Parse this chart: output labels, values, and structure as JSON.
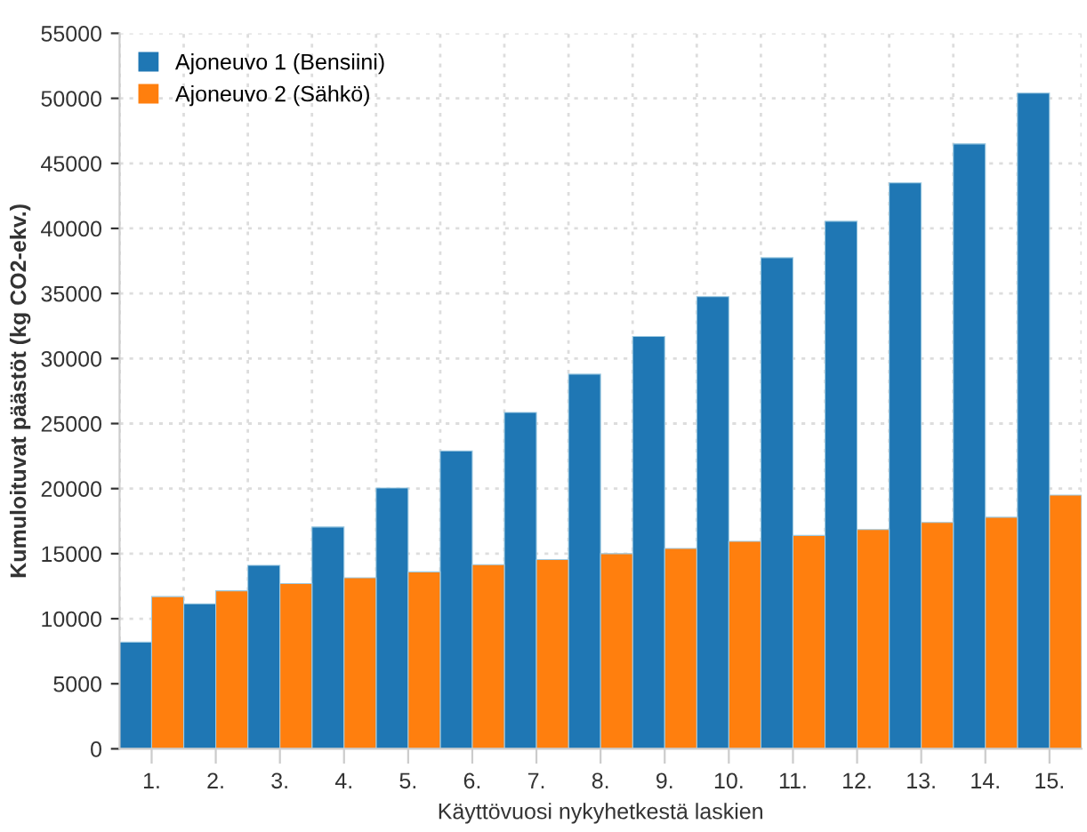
{
  "chart_data": {
    "type": "bar",
    "xlabel": "Käyttövuosi nykyhetkestä laskien",
    "ylabel": "Kumuloituvat päästöt (kg CO2-ekv.)",
    "categories": [
      "1.",
      "2.",
      "3.",
      "4.",
      "5.",
      "6.",
      "7.",
      "8.",
      "9.",
      "10.",
      "11.",
      "12.",
      "13.",
      "14.",
      "15."
    ],
    "series": [
      {
        "name": "Ajoneuvo 1 (Bensiini)",
        "color": "#1f77b4",
        "values": [
          8200,
          11150,
          14100,
          17050,
          20050,
          22900,
          25850,
          28800,
          31700,
          34750,
          37750,
          40550,
          43500,
          46500,
          50400
        ]
      },
      {
        "name": "Ajoneuvo 2 (Sähkö)",
        "color": "#ff7f0e",
        "values": [
          11700,
          12150,
          12700,
          13150,
          13600,
          14150,
          14550,
          15000,
          15400,
          15950,
          16400,
          16850,
          17400,
          17800,
          19500
        ]
      }
    ],
    "ylim": [
      0,
      55000
    ],
    "yticks": [
      0,
      5000,
      10000,
      15000,
      20000,
      25000,
      30000,
      35000,
      40000,
      45000,
      50000,
      55000
    ],
    "grid": true,
    "legend": "top left"
  }
}
